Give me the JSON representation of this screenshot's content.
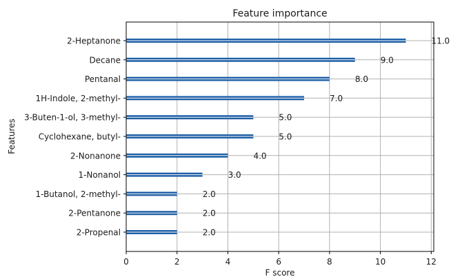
{
  "chart_data": {
    "type": "bar",
    "orientation": "horizontal",
    "title": "Feature importance",
    "xlabel": "F score",
    "ylabel": "Features",
    "xlim": [
      0,
      12.1
    ],
    "xticks": [
      0,
      2,
      4,
      6,
      8,
      10,
      12
    ],
    "grid": true,
    "bar_color": "#1f5fa6",
    "categories": [
      "2-Heptanone",
      "Decane",
      "Pentanal",
      "1H-Indole, 2-methyl-",
      "3-Buten-1-ol, 3-methyl-",
      "Cyclohexane, butyl-",
      "2-Nonanone",
      "1-Nonanol",
      "1-Butanol, 2-methyl-",
      "2-Pentanone",
      "2-Propenal"
    ],
    "values": [
      11.0,
      9.0,
      8.0,
      7.0,
      5.0,
      5.0,
      4.0,
      3.0,
      2.0,
      2.0,
      2.0
    ],
    "value_labels": [
      "11.0",
      "9.0",
      "8.0",
      "7.0",
      "5.0",
      "5.0",
      "4.0",
      "3.0",
      "2.0",
      "2.0",
      "2.0"
    ]
  }
}
